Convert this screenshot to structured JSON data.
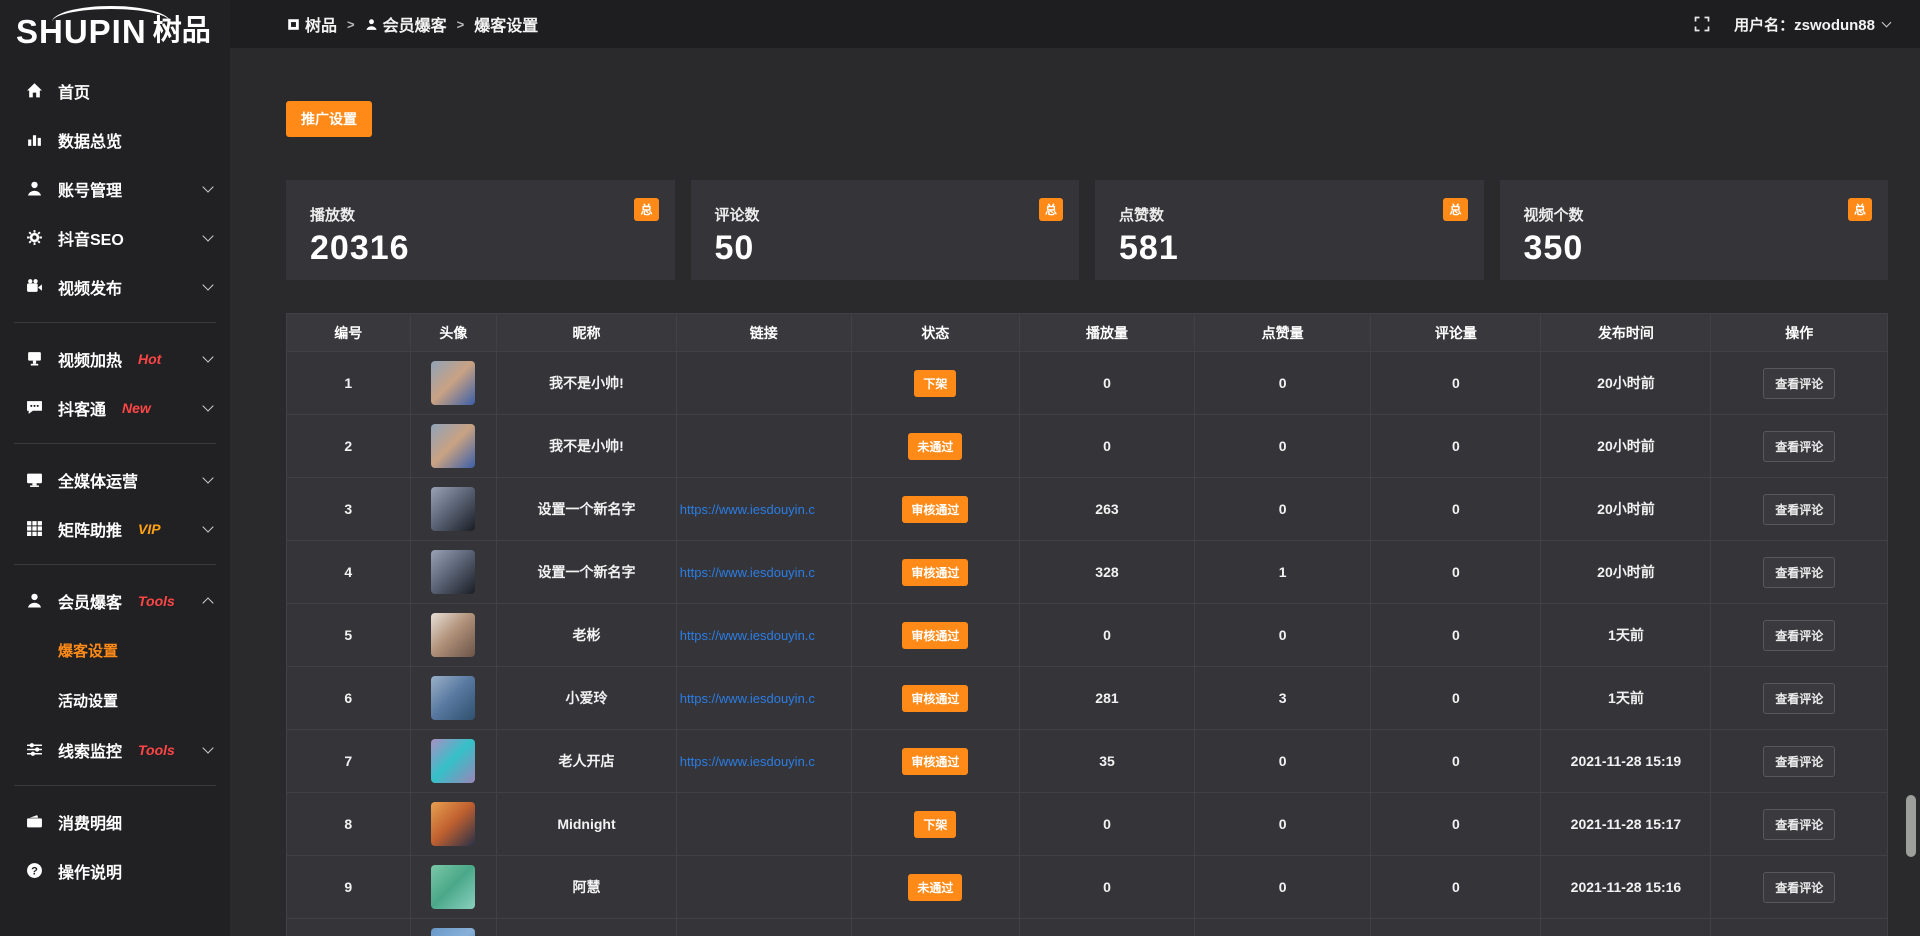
{
  "app": {
    "logo_primary": "SHUPIN",
    "logo_secondary": "树品"
  },
  "topbar": {
    "breadcrumb": [
      {
        "icon": "apps",
        "label": "树品"
      },
      {
        "icon": "user",
        "label": "会员爆客"
      },
      {
        "icon": null,
        "label": "爆客设置"
      }
    ],
    "separator": ">",
    "username_label": "用户名：zswodun88"
  },
  "sidebar": {
    "items": [
      {
        "icon": "home",
        "label": "首页"
      },
      {
        "icon": "chart",
        "label": "数据总览"
      },
      {
        "icon": "user",
        "label": "账号管理",
        "chevron": "down"
      },
      {
        "icon": "gear",
        "label": "抖音SEO",
        "chevron": "down"
      },
      {
        "icon": "video",
        "label": "视频发布",
        "chevron": "down",
        "divider_after": true
      },
      {
        "icon": "heat",
        "label": "视频加热",
        "tag": "Hot",
        "tag_color": "#ff4545",
        "chevron": "down"
      },
      {
        "icon": "chat",
        "label": "抖客通",
        "tag": "New",
        "tag_color": "#ff4545",
        "chevron": "down",
        "divider_after": true
      },
      {
        "icon": "monitor",
        "label": "全媒体运营",
        "chevron": "down"
      },
      {
        "icon": "grid",
        "label": "矩阵助推",
        "tag": "VIP",
        "tag_color": "#ffa114",
        "chevron": "down",
        "divider_after": true
      },
      {
        "icon": "user",
        "label": "会员爆客",
        "tag": "Tools",
        "tag_color": "#ff4545",
        "chevron": "up",
        "children": [
          {
            "label": "爆客设置",
            "active": true
          },
          {
            "label": "活动设置",
            "active": false
          }
        ]
      },
      {
        "icon": "sliders",
        "label": "线索监控",
        "tag": "Tools",
        "tag_color": "#ff4545",
        "chevron": "down",
        "divider_after": true
      },
      {
        "icon": "receipt",
        "label": "消费明细"
      },
      {
        "icon": "question",
        "label": "操作说明"
      }
    ]
  },
  "toolbar": {
    "promo_button": "推广设置"
  },
  "stats": [
    {
      "label": "播放数",
      "value": "20316",
      "badge": "总"
    },
    {
      "label": "评论数",
      "value": "50",
      "badge": "总"
    },
    {
      "label": "点赞数",
      "value": "581",
      "badge": "总"
    },
    {
      "label": "视频个数",
      "value": "350",
      "badge": "总"
    }
  ],
  "table": {
    "columns": [
      "编号",
      "头像",
      "昵称",
      "链接",
      "状态",
      "播放量",
      "点赞量",
      "评论量",
      "发布时间",
      "操作"
    ],
    "column_widths": [
      "7.7%",
      "5.4%",
      "11.2%",
      "10.9%",
      "10.5%",
      "10.9%",
      "11.0%",
      "10.6%",
      "10.6%",
      "11.0%"
    ],
    "action_label": "查看评论",
    "rows": [
      {
        "id": "1",
        "nickname": "我不是小帅!",
        "link": "",
        "status": "下架",
        "plays": "0",
        "likes": "0",
        "comments": "0",
        "time": "20小时前",
        "avatar": [
          "#8fa3b8",
          "#c9a283",
          "#3a5fa8"
        ]
      },
      {
        "id": "2",
        "nickname": "我不是小帅!",
        "link": "",
        "status": "未通过",
        "plays": "0",
        "likes": "0",
        "comments": "0",
        "time": "20小时前",
        "avatar": [
          "#8fa3b8",
          "#c9a283",
          "#3a5fa8"
        ]
      },
      {
        "id": "3",
        "nickname": "设置一个新名字",
        "link": "https://www.iesdouyin.c",
        "status": "审核通过",
        "plays": "263",
        "likes": "0",
        "comments": "0",
        "time": "20小时前",
        "avatar": [
          "#9aa3b6",
          "#5a6375",
          "#1a1d24"
        ]
      },
      {
        "id": "4",
        "nickname": "设置一个新名字",
        "link": "https://www.iesdouyin.c",
        "status": "审核通过",
        "plays": "328",
        "likes": "1",
        "comments": "0",
        "time": "20小时前",
        "avatar": [
          "#9aa3b6",
          "#5a6375",
          "#1a1d24"
        ]
      },
      {
        "id": "5",
        "nickname": "老彬",
        "link": "https://www.iesdouyin.c",
        "status": "审核通过",
        "plays": "0",
        "likes": "0",
        "comments": "0",
        "time": "1天前",
        "avatar": [
          "#e8e0d8",
          "#b09078",
          "#6a5448"
        ]
      },
      {
        "id": "6",
        "nickname": "小爱玲",
        "link": "https://www.iesdouyin.c",
        "status": "审核通过",
        "plays": "281",
        "likes": "3",
        "comments": "0",
        "time": "1天前",
        "avatar": [
          "#9ab0c8",
          "#5878a0",
          "#30506e"
        ]
      },
      {
        "id": "7",
        "nickname": "老人开店",
        "link": "https://www.iesdouyin.c",
        "status": "审核通过",
        "plays": "35",
        "likes": "0",
        "comments": "0",
        "time": "2021-11-28 15:19",
        "avatar": [
          "#a890c4",
          "#35c0c8",
          "#9a85b8"
        ]
      },
      {
        "id": "8",
        "nickname": "Midnight",
        "link": "",
        "status": "下架",
        "plays": "0",
        "likes": "0",
        "comments": "0",
        "time": "2021-11-28 15:17",
        "avatar": [
          "#e8a050",
          "#c06030",
          "#283048"
        ]
      },
      {
        "id": "9",
        "nickname": "阿慧",
        "link": "",
        "status": "未通过",
        "plays": "0",
        "likes": "0",
        "comments": "0",
        "time": "2021-11-28 15:16",
        "avatar": [
          "#7ac8a8",
          "#4aa888",
          "#8ad0c0"
        ]
      },
      {
        "id": "",
        "nickname": "",
        "link": "",
        "status": "",
        "plays": "",
        "likes": "",
        "comments": "",
        "time": "",
        "avatar": [
          "#6898c8",
          "#88b0d8",
          "#4878a8"
        ]
      }
    ]
  },
  "colors": {
    "accent": "#ff8a17",
    "link": "#2a7de6",
    "tag_red": "#ff4545",
    "tag_vip": "#ffa114"
  }
}
